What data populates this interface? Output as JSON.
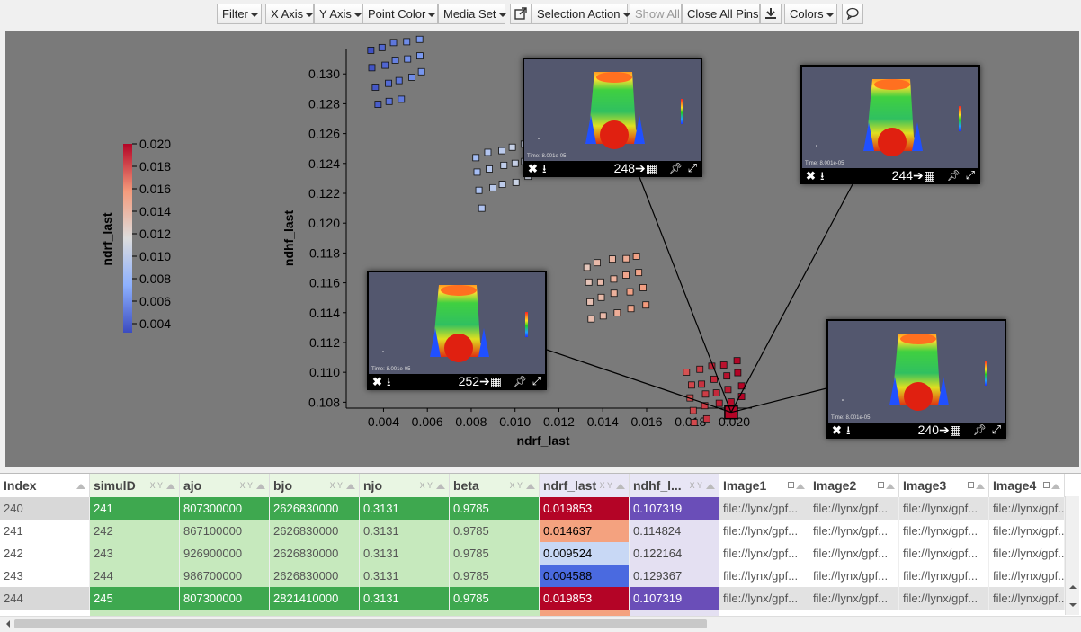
{
  "toolbar": {
    "filter": "Filter",
    "x_axis": "X Axis",
    "y_axis": "Y Axis",
    "point_color": "Point Color",
    "media_set": "Media Set",
    "selection_action": "Selection Action",
    "show_all": "Show All",
    "close_all_pins": "Close All Pins",
    "colors": "Colors"
  },
  "colorbar": {
    "label": "ndrf_last",
    "ticks": [
      "0.020",
      "0.018",
      "0.016",
      "0.014",
      "0.012",
      "0.010",
      "0.008",
      "0.006",
      "0.004"
    ],
    "low_color": "#3b4cc0",
    "mid_color": "#dddddd",
    "high_color": "#b40426"
  },
  "chart_data": {
    "type": "scatter",
    "xlabel": "ndrf_last",
    "ylabel": "ndhf_last",
    "xlim": [
      0.0023,
      0.0208
    ],
    "ylim": [
      0.1076,
      0.1317
    ],
    "xticks": [
      "0.004",
      "0.006",
      "0.008",
      "0.010",
      "0.012",
      "0.014",
      "0.016",
      "0.018",
      "0.020"
    ],
    "yticks": [
      "0.108",
      "0.110",
      "0.112",
      "0.114",
      "0.116",
      "0.118",
      "0.120",
      "0.122",
      "0.124",
      "0.126",
      "0.128",
      "0.130"
    ],
    "grid": false,
    "color_by": "ndrf_last",
    "clusters": [
      {
        "cx": 0.0047,
        "cy": 0.1302,
        "n": 18,
        "dx": 0.0011,
        "dy": 0.0018
      },
      {
        "cx": 0.0095,
        "cy": 0.1232,
        "n": 16,
        "dx": 0.0011,
        "dy": 0.0017
      },
      {
        "cx": 0.0146,
        "cy": 0.1158,
        "n": 20,
        "dx": 0.0012,
        "dy": 0.0017
      },
      {
        "cx": 0.0192,
        "cy": 0.1087,
        "n": 22,
        "dx": 0.0011,
        "dy": 0.0016
      }
    ],
    "highlighted_point": {
      "x": 0.019853,
      "y": 0.107319
    }
  },
  "pins": [
    {
      "label": "248",
      "time": "Time: 8.001e-05"
    },
    {
      "label": "244",
      "time": "Time: 8.001e-05"
    },
    {
      "label": "252",
      "time": "Time: 8.001e-05"
    },
    {
      "label": "240",
      "time": "Time: 8.001e-05"
    }
  ],
  "table": {
    "columns": [
      "Index",
      "simulD",
      "ajo",
      "bjo",
      "njo",
      "beta",
      "ndrf_last",
      "ndhf_l...",
      "Image1",
      "Image2",
      "Image3",
      "Image4"
    ],
    "xy_marker": "X Y",
    "rows": [
      {
        "index": "240",
        "simul": "241",
        "ajo": "807300000",
        "bjo": "2626830000",
        "njo": "0.3131",
        "beta": "0.9785",
        "ndrf": "0.019853",
        "ndhf": "0.107319",
        "img1": "file://lynx/gpf...",
        "img2": "file://lynx/gpf...",
        "img3": "file://lynx/gpf...",
        "img4": "file://lynx/gpf..."
      },
      {
        "index": "241",
        "simul": "242",
        "ajo": "867100000",
        "bjo": "2626830000",
        "njo": "0.3131",
        "beta": "0.9785",
        "ndrf": "0.014637",
        "ndhf": "0.114824",
        "img1": "file://lynx/gpf...",
        "img2": "file://lynx/gpf...",
        "img3": "file://lynx/gpf...",
        "img4": "file://lynx/gpf..."
      },
      {
        "index": "242",
        "simul": "243",
        "ajo": "926900000",
        "bjo": "2626830000",
        "njo": "0.3131",
        "beta": "0.9785",
        "ndrf": "0.009524",
        "ndhf": "0.122164",
        "img1": "file://lynx/gpf...",
        "img2": "file://lynx/gpf...",
        "img3": "file://lynx/gpf...",
        "img4": "file://lynx/gpf..."
      },
      {
        "index": "243",
        "simul": "244",
        "ajo": "986700000",
        "bjo": "2626830000",
        "njo": "0.3131",
        "beta": "0.9785",
        "ndrf": "0.004588",
        "ndhf": "0.129367",
        "img1": "file://lynx/gpf...",
        "img2": "file://lynx/gpf...",
        "img3": "file://lynx/gpf...",
        "img4": "file://lynx/gpf..."
      },
      {
        "index": "244",
        "simul": "245",
        "ajo": "807300000",
        "bjo": "2821410000",
        "njo": "0.3131",
        "beta": "0.9785",
        "ndrf": "0.019853",
        "ndhf": "0.107319",
        "img1": "file://lynx/gpf...",
        "img2": "file://lynx/gpf...",
        "img3": "file://lynx/gpf...",
        "img4": "file://lynx/gpf..."
      }
    ]
  }
}
